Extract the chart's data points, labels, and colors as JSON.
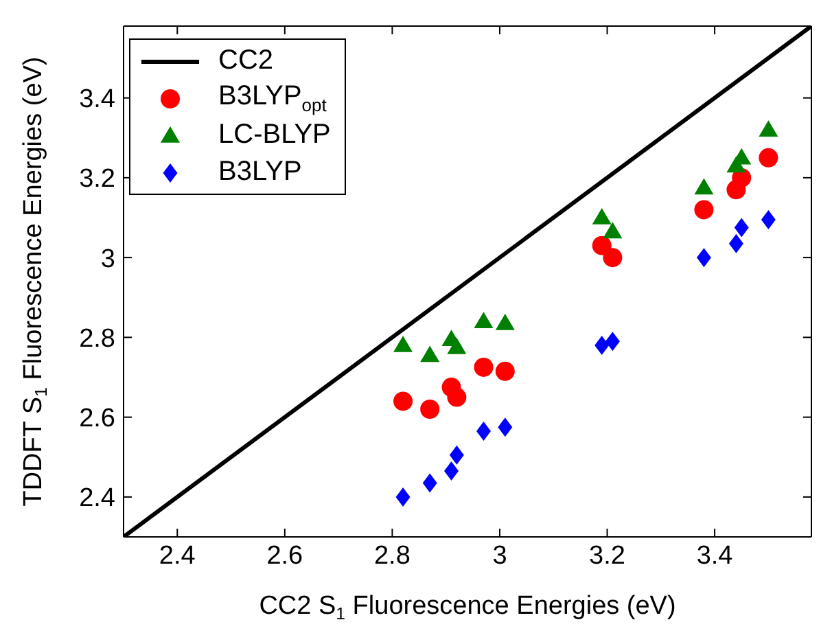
{
  "chart_data": {
    "type": "scatter",
    "xlabel": "CC2 S$_{1}$ Fluorescence Energies (eV)",
    "ylabel": "TDDFT S$_{1}$ Fluorescence Energies (eV)",
    "xlim": [
      2.3,
      3.58
    ],
    "ylim": [
      2.3,
      3.58
    ],
    "xticks": [
      2.4,
      2.6,
      2.8,
      3,
      3.2,
      3.4
    ],
    "yticks": [
      2.4,
      2.6,
      2.8,
      3,
      3.2,
      3.4
    ],
    "legend": "top left",
    "x": [
      2.82,
      2.87,
      2.91,
      2.92,
      2.97,
      3.01,
      3.19,
      3.21,
      3.38,
      3.44,
      3.45,
      3.5
    ],
    "series": [
      {
        "name": "CC2",
        "type": "line",
        "color": "#000000",
        "marker": "none",
        "line_style": "solid",
        "x": [
          2.3,
          3.58
        ],
        "values": [
          2.3,
          3.58
        ]
      },
      {
        "name": "B3LYP$_{opt}$",
        "color": "#ff0000",
        "marker": "circle",
        "values": [
          2.64,
          2.62,
          2.675,
          2.65,
          2.725,
          2.715,
          3.03,
          3.0,
          3.12,
          3.17,
          3.2,
          3.25
        ]
      },
      {
        "name": "LC-BLYP",
        "color": "#008000",
        "marker": "triangle",
        "values": [
          2.78,
          2.755,
          2.795,
          2.775,
          2.84,
          2.835,
          3.1,
          3.065,
          3.175,
          3.23,
          3.25,
          3.32
        ]
      },
      {
        "name": "B3LYP",
        "color": "#0000ff",
        "marker": "diamond",
        "values": [
          2.4,
          2.435,
          2.465,
          2.505,
          2.565,
          2.575,
          2.78,
          2.79,
          3.0,
          3.035,
          3.075,
          3.095
        ]
      }
    ]
  }
}
